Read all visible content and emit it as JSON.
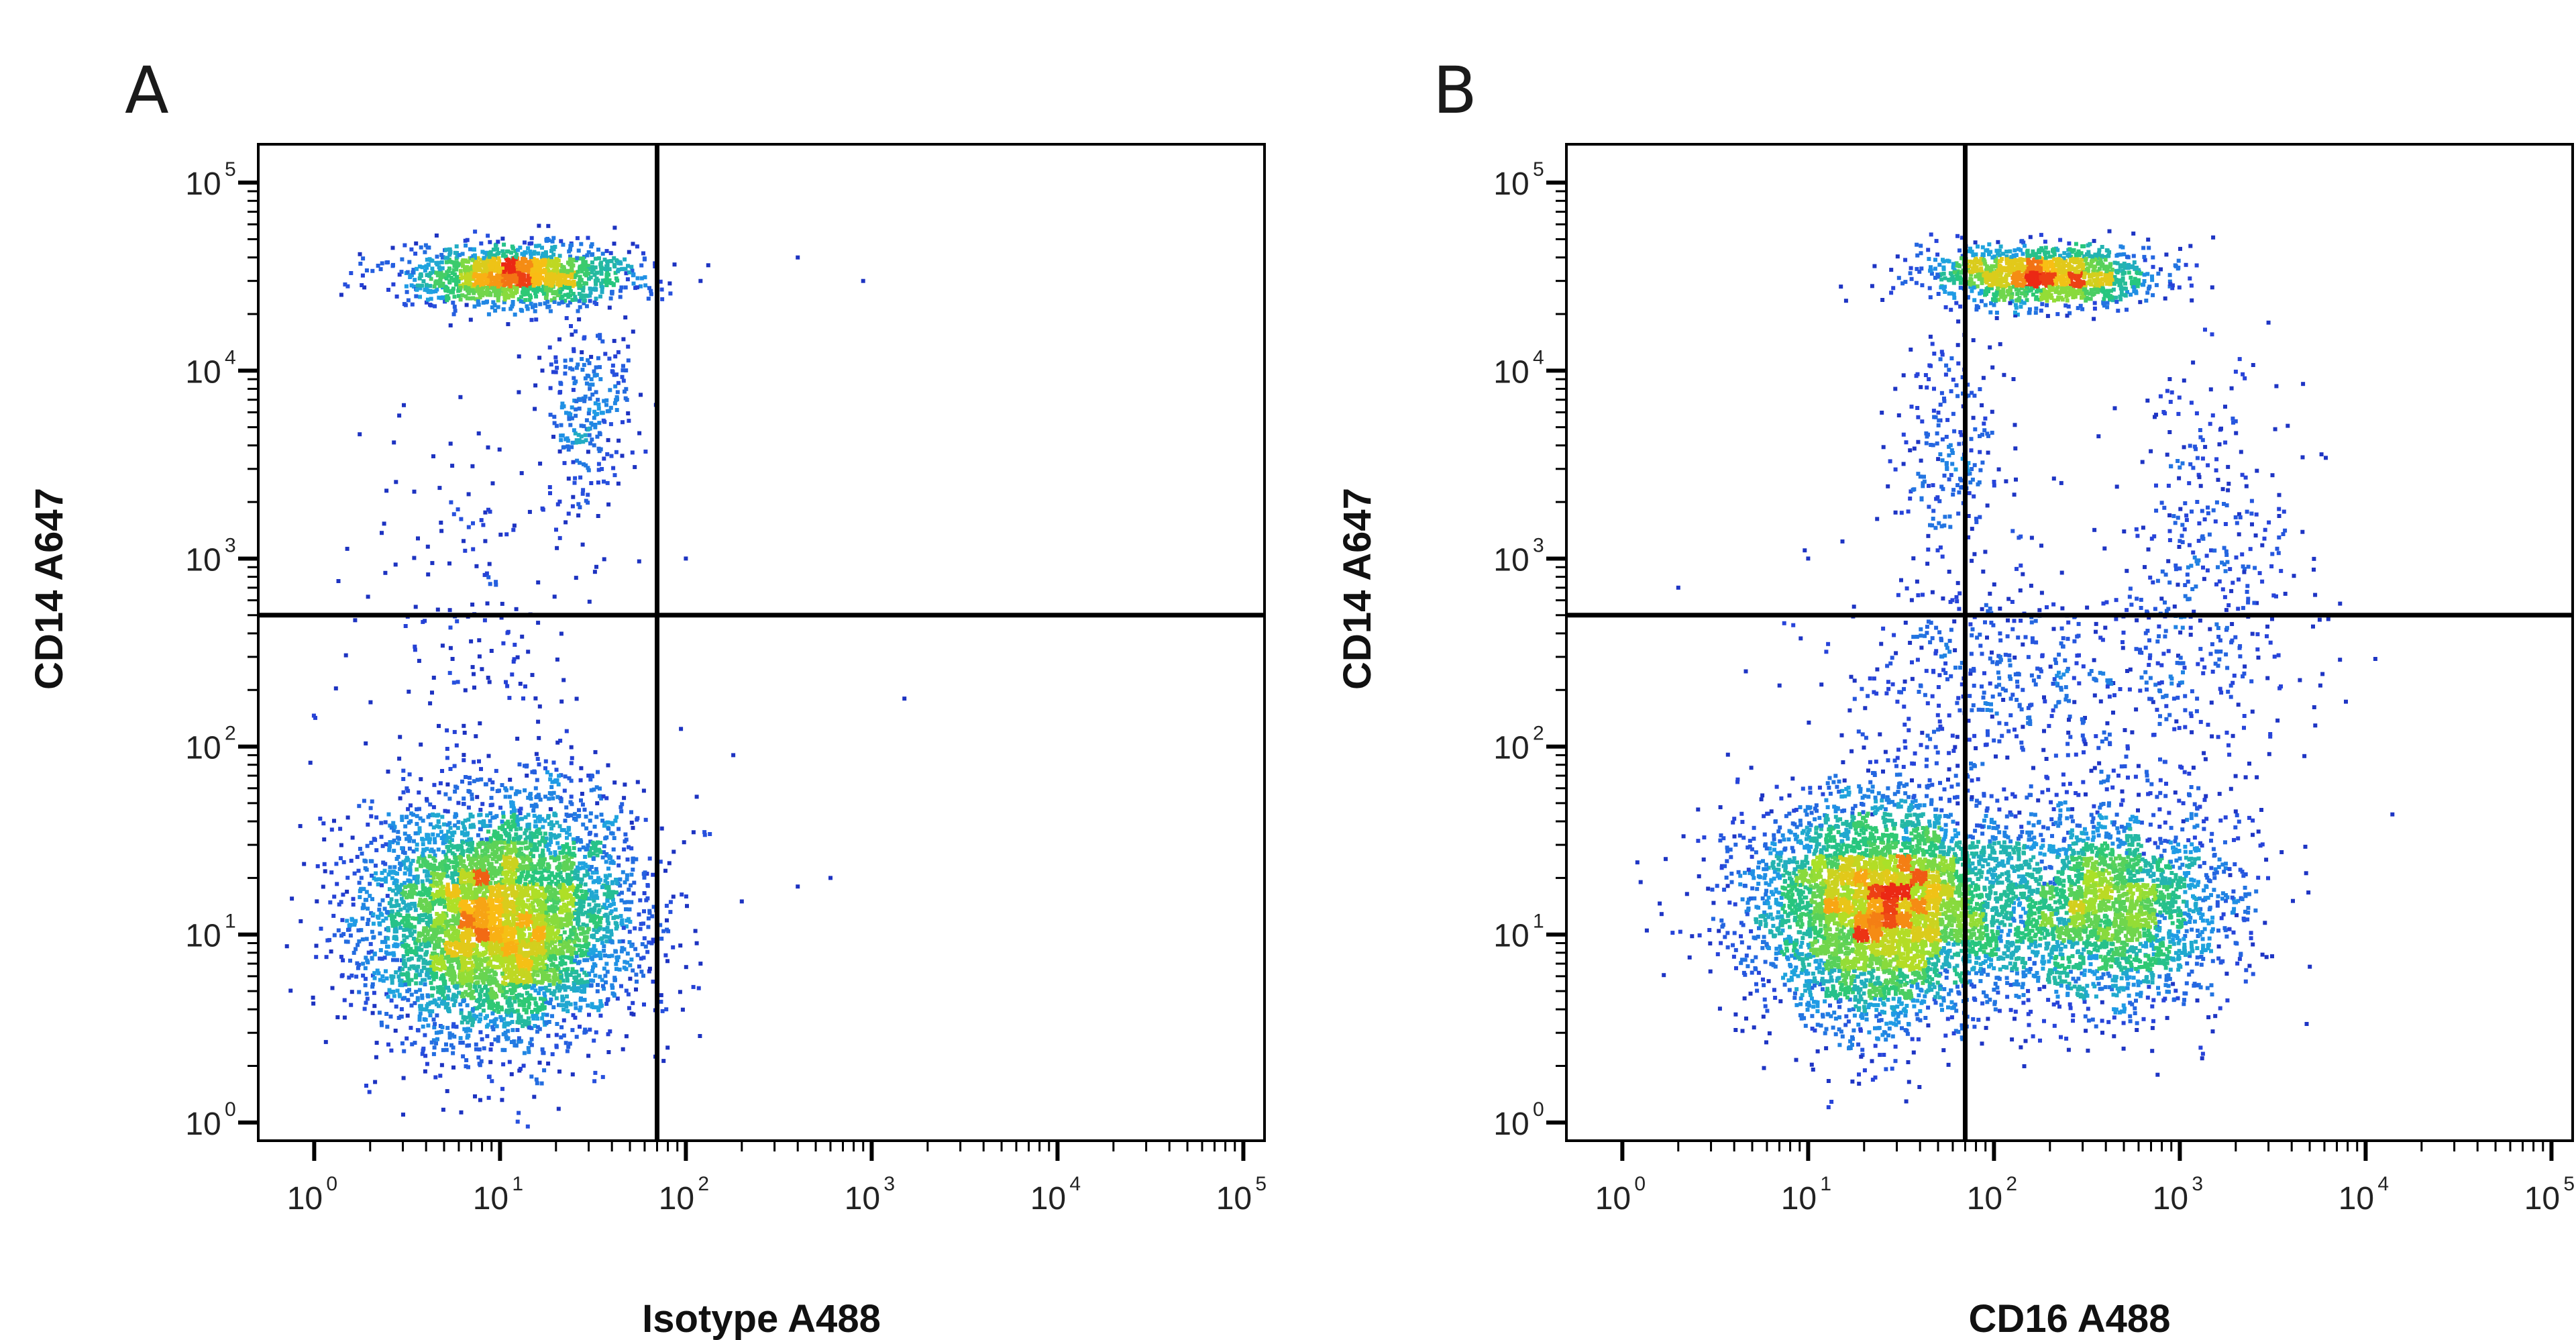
{
  "chart_data": [
    {
      "type": "scatter",
      "panel_label": "A",
      "xlabel": "Isotype A488",
      "ylabel": "CD14 A647",
      "x_scale": "log",
      "y_scale": "log",
      "xlim": [
        0.5,
        130000
      ],
      "ylim": [
        0.8,
        160000
      ],
      "x_ticks": [
        {
          "base": "10",
          "exp": "0",
          "value": 1
        },
        {
          "base": "10",
          "exp": "1",
          "value": 10
        },
        {
          "base": "10",
          "exp": "2",
          "value": 100
        },
        {
          "base": "10",
          "exp": "3",
          "value": 1000
        },
        {
          "base": "10",
          "exp": "4",
          "value": 10000
        },
        {
          "base": "10",
          "exp": "5",
          "value": 100000
        }
      ],
      "y_ticks": [
        {
          "base": "10",
          "exp": "0",
          "value": 1
        },
        {
          "base": "10",
          "exp": "1",
          "value": 10
        },
        {
          "base": "10",
          "exp": "2",
          "value": 100
        },
        {
          "base": "10",
          "exp": "3",
          "value": 1000
        },
        {
          "base": "10",
          "exp": "4",
          "value": 10000
        },
        {
          "base": "10",
          "exp": "5",
          "value": 100000
        }
      ],
      "quadrant_gate": {
        "x": 70,
        "y": 500
      },
      "populations": [
        {
          "x_center": 10,
          "y_center": 12,
          "x_spread": 0.36,
          "y_spread": 0.32,
          "count": 5200
        },
        {
          "x_center": 12,
          "y_center": 32000,
          "x_spread": 0.3,
          "y_spread": 0.08,
          "count": 1400
        },
        {
          "x_center": 30,
          "y_center": 6000,
          "x_spread": 0.12,
          "y_spread": 0.25,
          "count": 260
        },
        {
          "x_center": 8,
          "y_center": 500,
          "x_spread": 0.4,
          "y_spread": 0.5,
          "count": 180
        }
      ],
      "outliers": [
        [
          400,
          40000
        ],
        [
          900,
          30000
        ],
        [
          120,
          30000
        ],
        [
          100,
          1000
        ],
        [
          180,
          90
        ],
        [
          1500,
          180
        ],
        [
          400,
          18
        ],
        [
          200,
          15
        ],
        [
          600,
          20
        ],
        [
          120,
          7
        ],
        [
          110,
          35
        ]
      ]
    },
    {
      "type": "scatter",
      "panel_label": "B",
      "xlabel": "CD16 A488",
      "ylabel": "CD14 A647",
      "x_scale": "log",
      "y_scale": "log",
      "xlim": [
        0.5,
        130000
      ],
      "ylim": [
        0.8,
        160000
      ],
      "x_ticks": [
        {
          "base": "10",
          "exp": "0",
          "value": 1
        },
        {
          "base": "10",
          "exp": "1",
          "value": 10
        },
        {
          "base": "10",
          "exp": "2",
          "value": 100
        },
        {
          "base": "10",
          "exp": "3",
          "value": 1000
        },
        {
          "base": "10",
          "exp": "4",
          "value": 10000
        },
        {
          "base": "10",
          "exp": "5",
          "value": 100000
        }
      ],
      "y_ticks": [
        {
          "base": "10",
          "exp": "0",
          "value": 1
        },
        {
          "base": "10",
          "exp": "1",
          "value": 10
        },
        {
          "base": "10",
          "exp": "2",
          "value": 100
        },
        {
          "base": "10",
          "exp": "3",
          "value": 1000
        },
        {
          "base": "10",
          "exp": "4",
          "value": 10000
        },
        {
          "base": "10",
          "exp": "5",
          "value": 100000
        }
      ],
      "quadrant_gate": {
        "x": 70,
        "y": 500
      },
      "populations": [
        {
          "x_center": 25,
          "y_center": 14,
          "x_spread": 0.35,
          "y_spread": 0.3,
          "count": 4600
        },
        {
          "x_center": 400,
          "y_center": 14,
          "x_spread": 0.33,
          "y_spread": 0.28,
          "count": 2400
        },
        {
          "x_center": 180,
          "y_center": 32000,
          "x_spread": 0.3,
          "y_spread": 0.08,
          "count": 1300
        },
        {
          "x_center": 60,
          "y_center": 4000,
          "x_spread": 0.15,
          "y_spread": 0.3,
          "count": 220
        },
        {
          "x_center": 1500,
          "y_center": 800,
          "x_spread": 0.25,
          "y_spread": 0.6,
          "count": 400
        },
        {
          "x_center": 150,
          "y_center": 250,
          "x_spread": 0.5,
          "y_spread": 0.3,
          "count": 500
        }
      ],
      "outliers": [
        [
          2,
          700
        ],
        [
          10,
          1000
        ],
        [
          15,
          28000
        ],
        [
          3000,
          18000
        ]
      ]
    }
  ]
}
